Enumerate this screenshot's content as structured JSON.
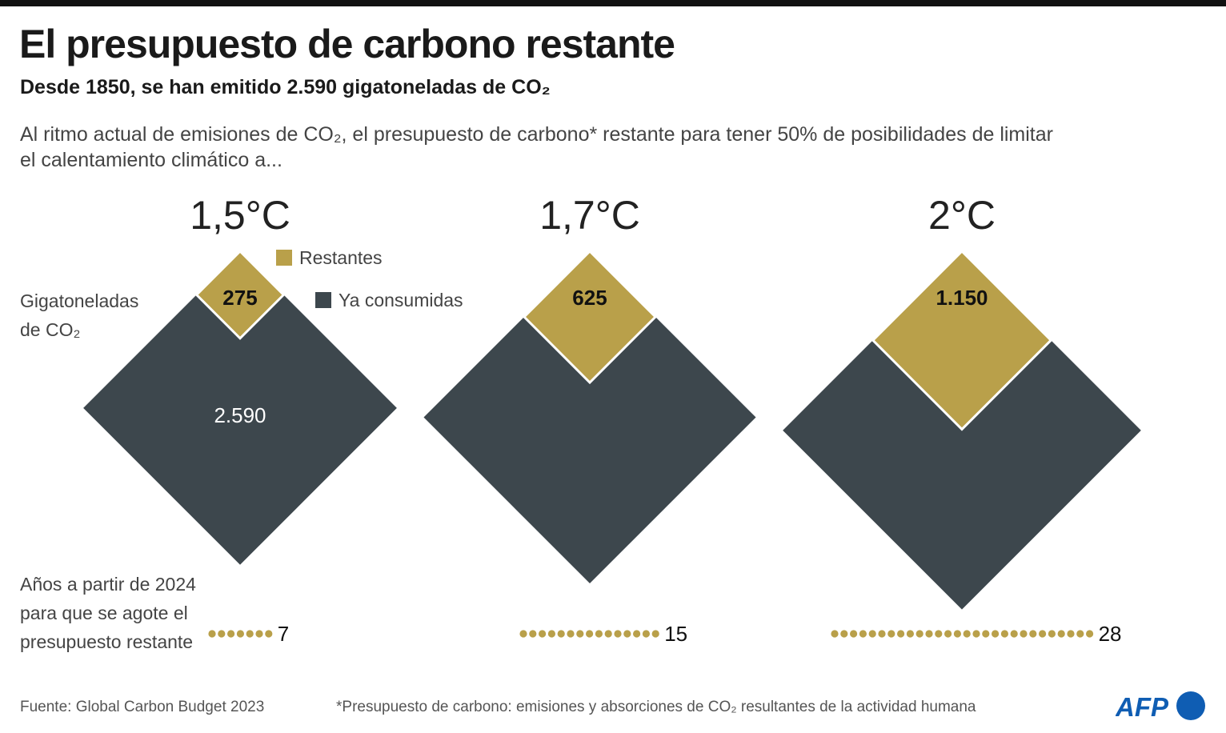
{
  "title": "El presupuesto de carbono restante",
  "subtitle": "Desde 1850, se han emitido 2.590 gigatoneladas de CO₂",
  "intro": "Al ritmo actual de emisiones de CO₂, el presupuesto de carbono* restante para tener 50% de posibilidades de limitar el calentamiento climático a...",
  "unit_label": "Gigatoneladas de CO₂",
  "years_label": "Años a partir de 2024 para que se agote el presupuesto restante",
  "source": "Fuente: Global Carbon Budget 2023",
  "footnote": "*Presupuesto de carbono: emisiones y absorciones de CO₂ resultantes de la actividad humana",
  "logo": "AFP",
  "colors": {
    "remaining": "#b9a04a",
    "consumed": "#3d474d",
    "logo": "#0f5db3"
  },
  "chart_data": {
    "type": "diamond-area",
    "legend": [
      {
        "name": "Restantes",
        "color": "#b9a04a"
      },
      {
        "name": "Ya consumidas",
        "color": "#3d474d"
      }
    ],
    "legend_placement": "top",
    "consumed": 2590,
    "consumed_label": "2.590",
    "scenarios": [
      {
        "label": "1,5°C",
        "remaining": 275,
        "remaining_label": "275",
        "years": 7,
        "years_label": "7"
      },
      {
        "label": "1,7°C",
        "remaining": 625,
        "remaining_label": "625",
        "years": 15,
        "years_label": "15"
      },
      {
        "label": "2°C",
        "remaining": 1150,
        "remaining_label": "1.150",
        "years": 28,
        "years_label": "28"
      }
    ]
  }
}
